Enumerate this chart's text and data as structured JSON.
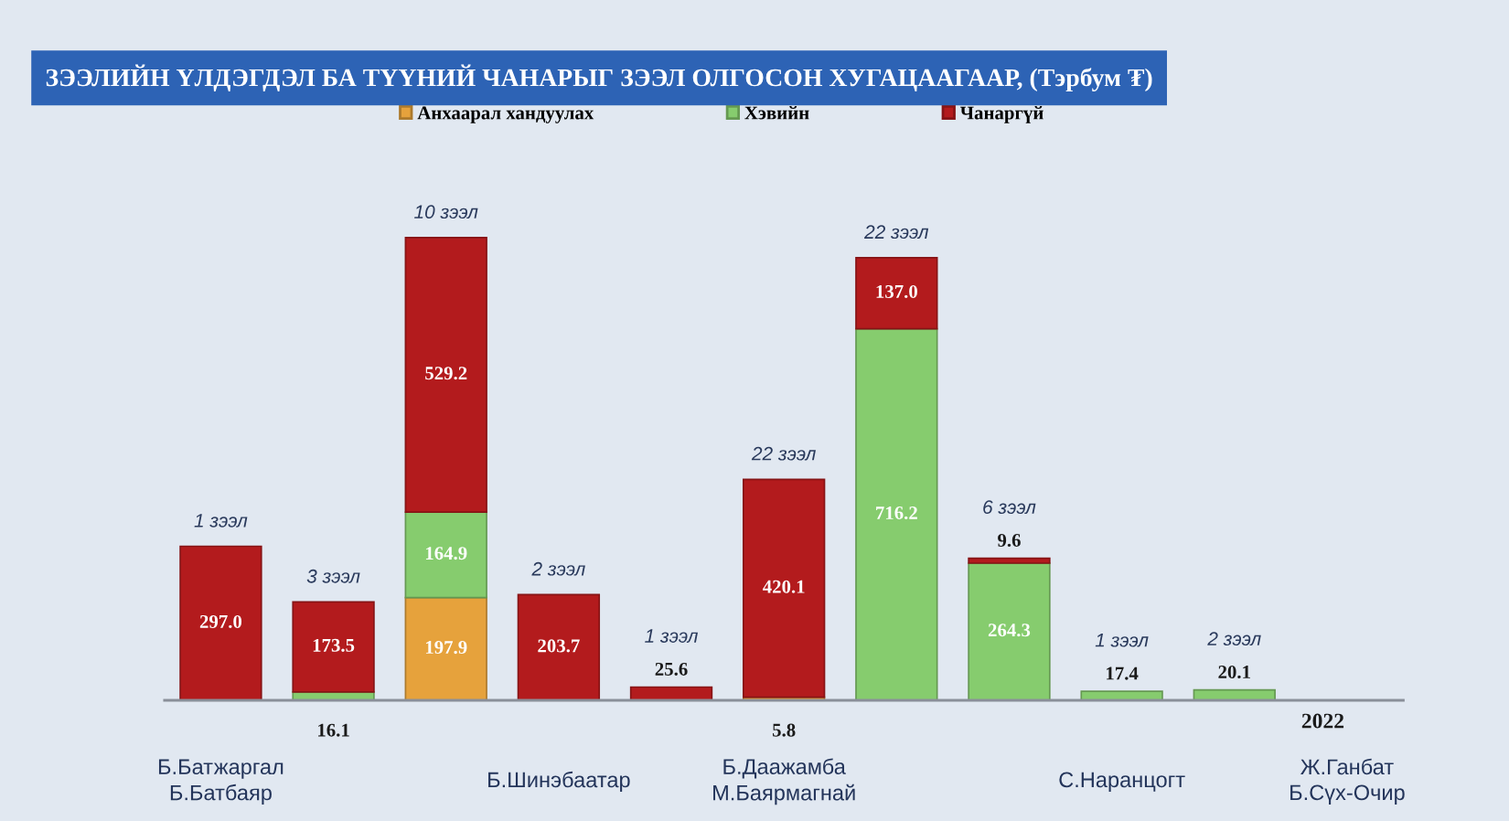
{
  "chart_data": {
    "type": "bar",
    "stacked": true,
    "title": "ЗЭЭЛИЙН ҮЛДЭГДЭЛ БА ТҮҮНИЙ ЧАНАРЫГ ЗЭЭЛ ОЛГОСОН ХУГАЦААГААР, (Тэрбум ₮)",
    "categories": [
      "Б.Батжаргал\nБ.Батбаяр",
      null,
      null,
      "Б.Шинэбаатар",
      null,
      "Б.Даажамба\nМ.Баярмагнай",
      null,
      null,
      "С.Наранцогт",
      null,
      "Ж.Ганбат\nБ.Сүх-Очир"
    ],
    "series": [
      {
        "name": "Анхаарал хандуулах",
        "color": "#e6a23c",
        "values": [
          null,
          null,
          197.9,
          null,
          null,
          5.8,
          null,
          null,
          null,
          null,
          null
        ],
        "value_labels": [
          null,
          null,
          "197.9",
          null,
          null,
          "5.8",
          null,
          null,
          null,
          null,
          null
        ]
      },
      {
        "name": "Хэвийн",
        "color": "#86cc6e",
        "values": [
          null,
          16.1,
          164.9,
          null,
          null,
          null,
          716.2,
          264.3,
          17.4,
          20.1,
          null
        ],
        "value_labels": [
          null,
          "16.1",
          "164.9",
          null,
          null,
          null,
          "716.2",
          "264.3",
          "17.4",
          "20.1",
          null
        ]
      },
      {
        "name": "Чанаргүй",
        "color": "#b31b1d",
        "values": [
          297.0,
          173.5,
          529.2,
          203.7,
          25.6,
          420.1,
          137.0,
          9.6,
          null,
          null,
          null
        ],
        "value_labels": [
          "297.0",
          "173.5",
          "529.2",
          "203.7",
          "25.6",
          "420.1",
          "137.0",
          "9.6",
          null,
          null,
          null
        ]
      }
    ],
    "annotations": [
      {
        "text": "1 зээл",
        "y": 297.0
      },
      {
        "text": "3 зээл",
        "y": 189.6
      },
      {
        "text": "10 зээл",
        "y": 892.0
      },
      {
        "text": "2 зээл",
        "y": 203.7
      },
      {
        "text": "1 зээл",
        "y": 25.6
      },
      {
        "text": "22 зээл",
        "y": 425.9
      },
      {
        "text": "22 зээл",
        "y": 853.2
      },
      {
        "text": "6 зээл",
        "y": 273.9
      },
      {
        "text": "1 зээл",
        "y": 17.4
      },
      {
        "text": "2 зээл",
        "y": 20.1
      },
      "2022"
    ],
    "legend": "top",
    "tick_labels": "x"
  }
}
